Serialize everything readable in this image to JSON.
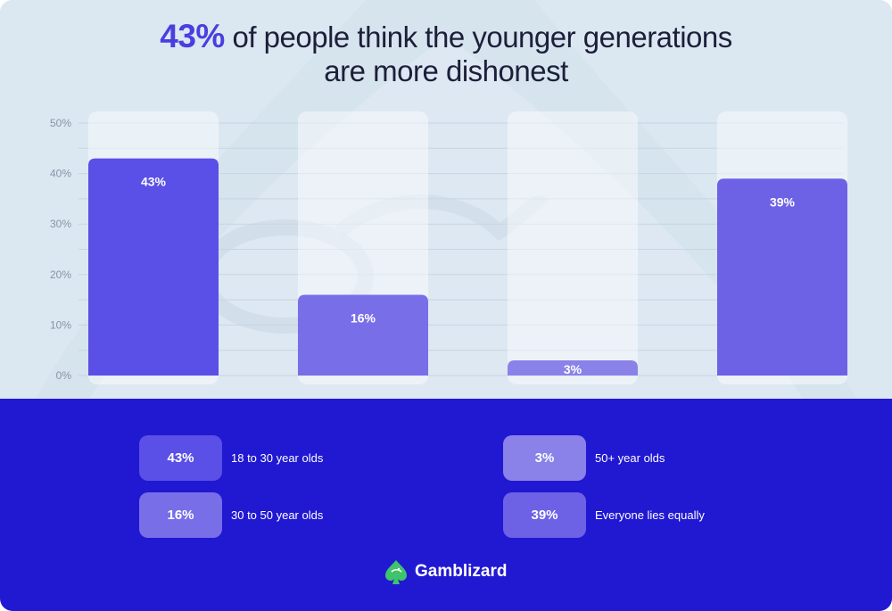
{
  "title": {
    "highlight": "43%",
    "line1_rest": " of people think the younger generations",
    "line2": "are more dishonest"
  },
  "chart_data": {
    "type": "bar",
    "categories": [
      "18 to 30 year olds",
      "30 to 50 year olds",
      "50+ year olds",
      "Everyone lies equally"
    ],
    "values": [
      43,
      16,
      3,
      39
    ],
    "labels": [
      "43%",
      "16%",
      "3%",
      "39%"
    ],
    "yticks": [
      0,
      10,
      20,
      30,
      40,
      50
    ],
    "ytick_labels": [
      "0%",
      "10%",
      "20%",
      "30%",
      "40%",
      "50%"
    ],
    "ylim": [
      0,
      50
    ],
    "title": "43% of people think the younger generations are more dishonest",
    "xlabel": "",
    "ylabel": "",
    "colors": [
      "#5a4fe6",
      "#786ee8",
      "#8a82e9",
      "#6d62e6"
    ]
  },
  "legend": [
    {
      "value": "43%",
      "label": "18 to 30 year olds",
      "color": "#5a4fe6"
    },
    {
      "value": "16%",
      "label": "30 to 50 year olds",
      "color": "#786ee8"
    },
    {
      "value": "3%",
      "label": "50+ year olds",
      "color": "#8a82e9"
    },
    {
      "value": "39%",
      "label": "Everyone lies equally",
      "color": "#6d62e6"
    }
  ],
  "brand": {
    "name": "Gamblizard",
    "logo_icon": "spade-lizard-icon",
    "logo_color": "#3fc46b"
  },
  "colors": {
    "top_bg": "#dbe8f1",
    "bottom_bg": "#2118d2",
    "accent": "#4a3ee0"
  }
}
